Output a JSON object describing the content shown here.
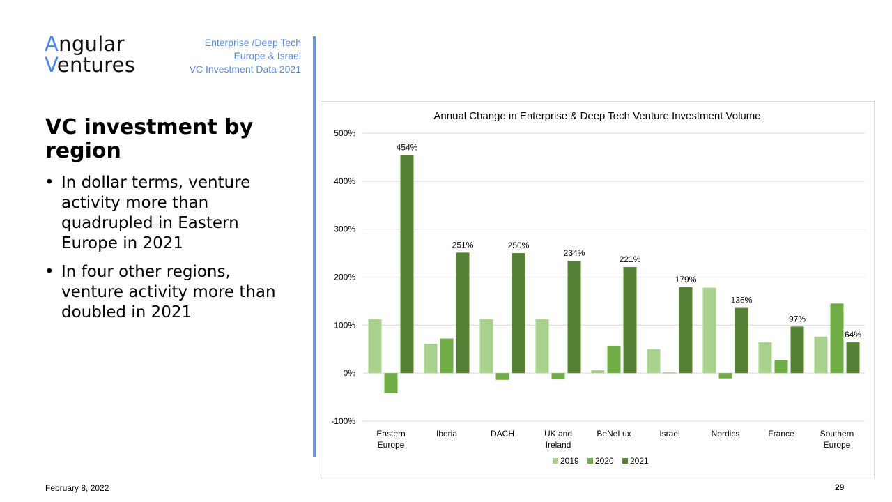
{
  "logo": {
    "line1_accent": "A",
    "line1_rest": "ngular",
    "line2_accent": "V",
    "line2_rest": "entures"
  },
  "header_meta": [
    "Enterprise /Deep Tech",
    "Europe & Israel",
    "VC Investment Data 2021"
  ],
  "title": "VC investment by region",
  "bullets": [
    "In dollar terms, venture activity more than quadrupled in Eastern Europe in 2021",
    "In four other regions, venture activity more than doubled in 2021"
  ],
  "bullet_glyph": "•",
  "footer": {
    "date": "February 8, 2022",
    "page": "29"
  },
  "colors": {
    "accent": "#4a86e8",
    "s2019": "#a9d18e",
    "s2020": "#70ad47",
    "s2021": "#548235"
  },
  "chart_data": {
    "type": "bar",
    "title": "Annual Change in Enterprise & Deep Tech Venture Investment Volume",
    "xlabel": "",
    "ylabel": "",
    "ylim": [
      -100,
      500
    ],
    "yticks": [
      -100,
      0,
      100,
      200,
      300,
      400,
      500
    ],
    "ytick_labels": [
      "-100%",
      "0%",
      "100%",
      "200%",
      "300%",
      "400%",
      "500%"
    ],
    "grid": true,
    "legend": "bottom",
    "categories": [
      [
        "Eastern",
        "Europe"
      ],
      [
        "Iberia"
      ],
      [
        "DACH"
      ],
      [
        "UK and",
        "Ireland"
      ],
      [
        "BeNeLux"
      ],
      [
        "Israel"
      ],
      [
        "Nordics"
      ],
      [
        "France"
      ],
      [
        "Southern",
        "Europe"
      ]
    ],
    "series": [
      {
        "name": "2019",
        "color": "#a9d18e",
        "values": [
          112,
          61,
          112,
          112,
          6,
          50,
          178,
          64,
          76
        ],
        "labels": null
      },
      {
        "name": "2020",
        "color": "#70ad47",
        "values": [
          -42,
          72,
          -14,
          -13,
          57,
          1,
          -11,
          27,
          145
        ],
        "labels": null
      },
      {
        "name": "2021",
        "color": "#548235",
        "values": [
          454,
          251,
          250,
          234,
          221,
          179,
          136,
          97,
          64
        ],
        "labels": [
          "454%",
          "251%",
          "250%",
          "234%",
          "221%",
          "179%",
          "136%",
          "97%",
          "64%"
        ]
      }
    ]
  }
}
